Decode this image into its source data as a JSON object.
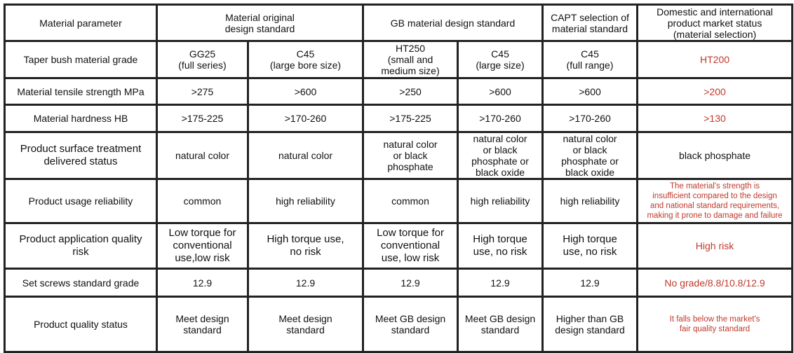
{
  "colors": {
    "market_text": "#c0392b",
    "border": "#222222"
  },
  "header": {
    "param": "Material parameter",
    "original": "Material original\ndesign standard",
    "gb": "GB material design standard",
    "capt": "CAPT selection of\nmaterial standard",
    "market": "Domestic and international\nproduct market status\n(material selection)"
  },
  "rows": [
    {
      "label": "Taper bush material grade",
      "cells": [
        "GG25\n(full series)",
        "C45\n(large bore size)",
        "HT250\n(small and\nmedium size)",
        "C45\n(large size)",
        "C45\n(full range)",
        "HT200"
      ]
    },
    {
      "label": "Material tensile strength MPa",
      "cells": [
        ">275",
        ">600",
        ">250",
        ">600",
        ">600",
        ">200"
      ]
    },
    {
      "label": "Material hardness HB",
      "cells": [
        ">175-225",
        ">170-260",
        ">175-225",
        ">170-260",
        ">170-260",
        ">130"
      ]
    },
    {
      "label": "Product surface treatment\ndelivered status",
      "cells": [
        "natural color",
        "natural color",
        "natural color\nor black\nphosphate",
        "natural color\nor black\nphosphate or\nblack oxide",
        "natural color\nor black\nphosphate or\nblack oxide",
        "black phosphate"
      ]
    },
    {
      "label": "Product usage reliability",
      "cells": [
        "common",
        "high reliability",
        "common",
        "high reliability",
        "high reliability",
        "The material's strength is\ninsufficient compared to the design\nand national standard requirements,\nmaking it prone to damage and failure"
      ]
    },
    {
      "label": "Product application quality\nrisk",
      "cells": [
        "Low torque for\nconventional\nuse,low risk",
        "High torque use,\nno risk",
        "Low torque for\nconventional\nuse, low risk",
        "High torque\nuse, no risk",
        "High torque\nuse, no risk",
        "High risk"
      ]
    },
    {
      "label": "Set screws standard grade",
      "cells": [
        "12.9",
        "12.9",
        "12.9",
        "12.9",
        "12.9",
        "No grade/8.8/10.8/12.9"
      ]
    },
    {
      "label": "Product quality status",
      "cells": [
        "Meet design\nstandard",
        "Meet design\nstandard",
        "Meet GB design\nstandard",
        "Meet GB design\nstandard",
        "Higher than  GB\ndesign standard",
        "It falls below the market's\nfair quality standard"
      ]
    }
  ]
}
